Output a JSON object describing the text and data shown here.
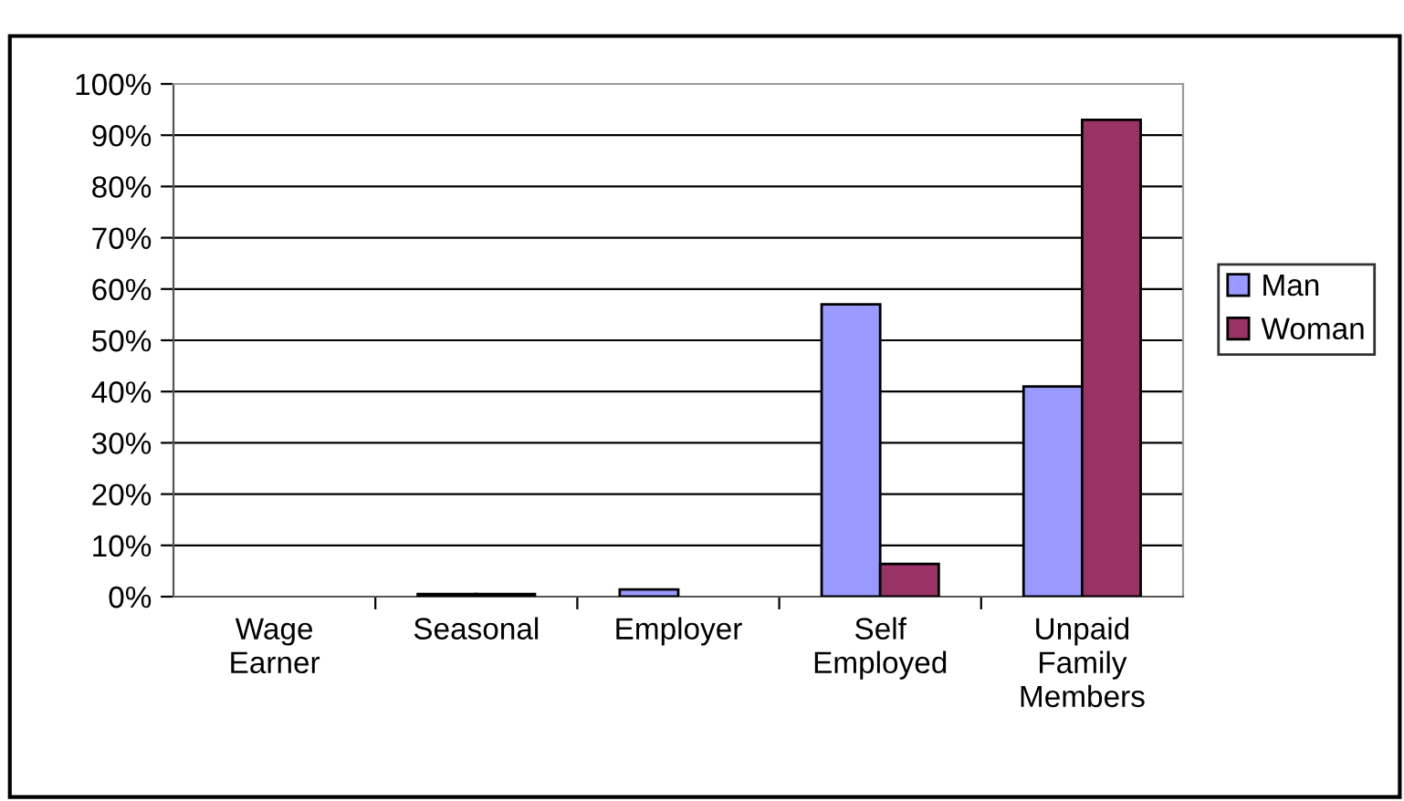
{
  "chart_data": {
    "type": "bar",
    "categories": [
      "Wage\nEarner",
      "Seasonal",
      "Employer",
      "Self\nEmployed",
      "Unpaid\nFamily\nMembers"
    ],
    "series": [
      {
        "name": "Man",
        "color": "#9999ff",
        "values": [
          null,
          0.5,
          1.4,
          57,
          41
        ]
      },
      {
        "name": "Woman",
        "color": "#993366",
        "values": [
          null,
          0.5,
          null,
          6.4,
          93
        ]
      }
    ],
    "ylim": [
      0,
      100
    ],
    "yticks": [
      {
        "value": 0,
        "label": "0%"
      },
      {
        "value": 10,
        "label": "10%"
      },
      {
        "value": 20,
        "label": "20%"
      },
      {
        "value": 30,
        "label": "30%"
      },
      {
        "value": 40,
        "label": "40%"
      },
      {
        "value": 50,
        "label": "50%"
      },
      {
        "value": 60,
        "label": "60%"
      },
      {
        "value": 70,
        "label": "70%"
      },
      {
        "value": 80,
        "label": "80%"
      },
      {
        "value": 90,
        "label": "90%"
      },
      {
        "value": 100,
        "label": "100%"
      }
    ],
    "grid": "y",
    "legend": "right"
  }
}
